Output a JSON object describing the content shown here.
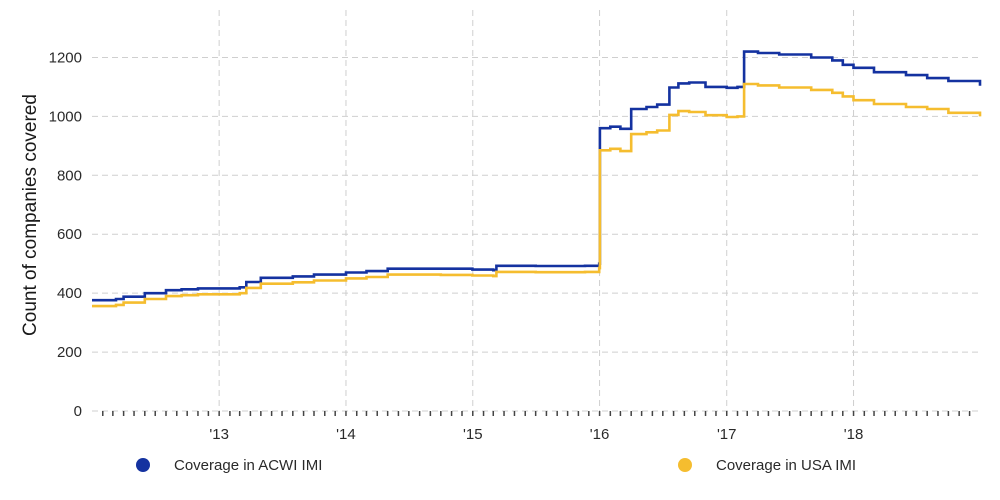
{
  "chart_data": {
    "type": "line",
    "ylabel": "Count of companies covered",
    "ylim": [
      0,
      1300
    ],
    "xlim": [
      "2012-01-01",
      "2018-12-31"
    ],
    "yticks": [
      "0",
      "200",
      "400",
      "600",
      "800",
      "1000",
      "1200"
    ],
    "xticks": [
      {
        "label": "'13",
        "date": "2013-01-01"
      },
      {
        "label": "'14",
        "date": "2014-01-01"
      },
      {
        "label": "'15",
        "date": "2015-01-01"
      },
      {
        "label": "'16",
        "date": "2016-01-01"
      },
      {
        "label": "'17",
        "date": "2017-01-01"
      },
      {
        "label": "'18",
        "date": "2018-01-01"
      }
    ],
    "grid": true,
    "legend_position": "bottom",
    "series": [
      {
        "name": "Coverage in ACWI IMI",
        "color": "#1432a0",
        "step": true,
        "points": [
          [
            "2012-01-01",
            376
          ],
          [
            "2012-03-10",
            380
          ],
          [
            "2012-04-01",
            388
          ],
          [
            "2012-06-01",
            400
          ],
          [
            "2012-08-01",
            410
          ],
          [
            "2012-09-15",
            413
          ],
          [
            "2012-11-01",
            416
          ],
          [
            "2013-03-01",
            420
          ],
          [
            "2013-03-20",
            438
          ],
          [
            "2013-05-01",
            452
          ],
          [
            "2013-08-01",
            457
          ],
          [
            "2013-10-01",
            463
          ],
          [
            "2014-01-01",
            470
          ],
          [
            "2014-03-01",
            475
          ],
          [
            "2014-05-01",
            483
          ],
          [
            "2014-10-01",
            483
          ],
          [
            "2014-12-31",
            480
          ],
          [
            "2015-03-01",
            478
          ],
          [
            "2015-03-10",
            493
          ],
          [
            "2015-07-01",
            492
          ],
          [
            "2015-11-20",
            493
          ],
          [
            "2015-12-31",
            500
          ],
          [
            "2016-01-02",
            960
          ],
          [
            "2016-02-01",
            965
          ],
          [
            "2016-03-01",
            958
          ],
          [
            "2016-04-01",
            1025
          ],
          [
            "2016-05-15",
            1032
          ],
          [
            "2016-06-15",
            1040
          ],
          [
            "2016-07-20",
            1098
          ],
          [
            "2016-08-15",
            1112
          ],
          [
            "2016-09-15",
            1115
          ],
          [
            "2016-11-01",
            1100
          ],
          [
            "2017-01-01",
            1097
          ],
          [
            "2017-02-01",
            1100
          ],
          [
            "2017-02-20",
            1220
          ],
          [
            "2017-04-01",
            1215
          ],
          [
            "2017-06-01",
            1210
          ],
          [
            "2017-09-01",
            1200
          ],
          [
            "2017-11-01",
            1190
          ],
          [
            "2017-12-01",
            1175
          ],
          [
            "2018-01-01",
            1165
          ],
          [
            "2018-03-01",
            1150
          ],
          [
            "2018-06-01",
            1140
          ],
          [
            "2018-08-01",
            1130
          ],
          [
            "2018-10-01",
            1120
          ],
          [
            "2018-12-31",
            1104
          ]
        ]
      },
      {
        "name": "Coverage in USA IMI",
        "color": "#f5bd2f",
        "step": true,
        "points": [
          [
            "2012-01-01",
            356
          ],
          [
            "2012-03-10",
            360
          ],
          [
            "2012-04-01",
            368
          ],
          [
            "2012-06-01",
            380
          ],
          [
            "2012-08-01",
            390
          ],
          [
            "2012-09-15",
            393
          ],
          [
            "2012-11-01",
            396
          ],
          [
            "2013-03-01",
            400
          ],
          [
            "2013-03-20",
            418
          ],
          [
            "2013-05-01",
            432
          ],
          [
            "2013-08-01",
            437
          ],
          [
            "2013-10-01",
            443
          ],
          [
            "2014-01-01",
            450
          ],
          [
            "2014-03-01",
            455
          ],
          [
            "2014-05-01",
            463
          ],
          [
            "2014-10-01",
            462
          ],
          [
            "2014-12-31",
            460
          ],
          [
            "2015-03-01",
            458
          ],
          [
            "2015-03-10",
            472
          ],
          [
            "2015-07-01",
            471
          ],
          [
            "2015-11-20",
            472
          ],
          [
            "2015-12-31",
            485
          ],
          [
            "2016-01-02",
            885
          ],
          [
            "2016-02-01",
            890
          ],
          [
            "2016-03-01",
            882
          ],
          [
            "2016-04-01",
            940
          ],
          [
            "2016-05-15",
            946
          ],
          [
            "2016-06-15",
            952
          ],
          [
            "2016-07-20",
            1005
          ],
          [
            "2016-08-15",
            1018
          ],
          [
            "2016-09-15",
            1015
          ],
          [
            "2016-11-01",
            1004
          ],
          [
            "2017-01-01",
            998
          ],
          [
            "2017-02-01",
            1000
          ],
          [
            "2017-02-20",
            1110
          ],
          [
            "2017-04-01",
            1105
          ],
          [
            "2017-06-01",
            1098
          ],
          [
            "2017-09-01",
            1090
          ],
          [
            "2017-11-01",
            1080
          ],
          [
            "2017-12-01",
            1068
          ],
          [
            "2018-01-01",
            1055
          ],
          [
            "2018-03-01",
            1042
          ],
          [
            "2018-06-01",
            1032
          ],
          [
            "2018-08-01",
            1025
          ],
          [
            "2018-10-01",
            1012
          ],
          [
            "2018-12-31",
            1000
          ]
        ]
      }
    ]
  }
}
